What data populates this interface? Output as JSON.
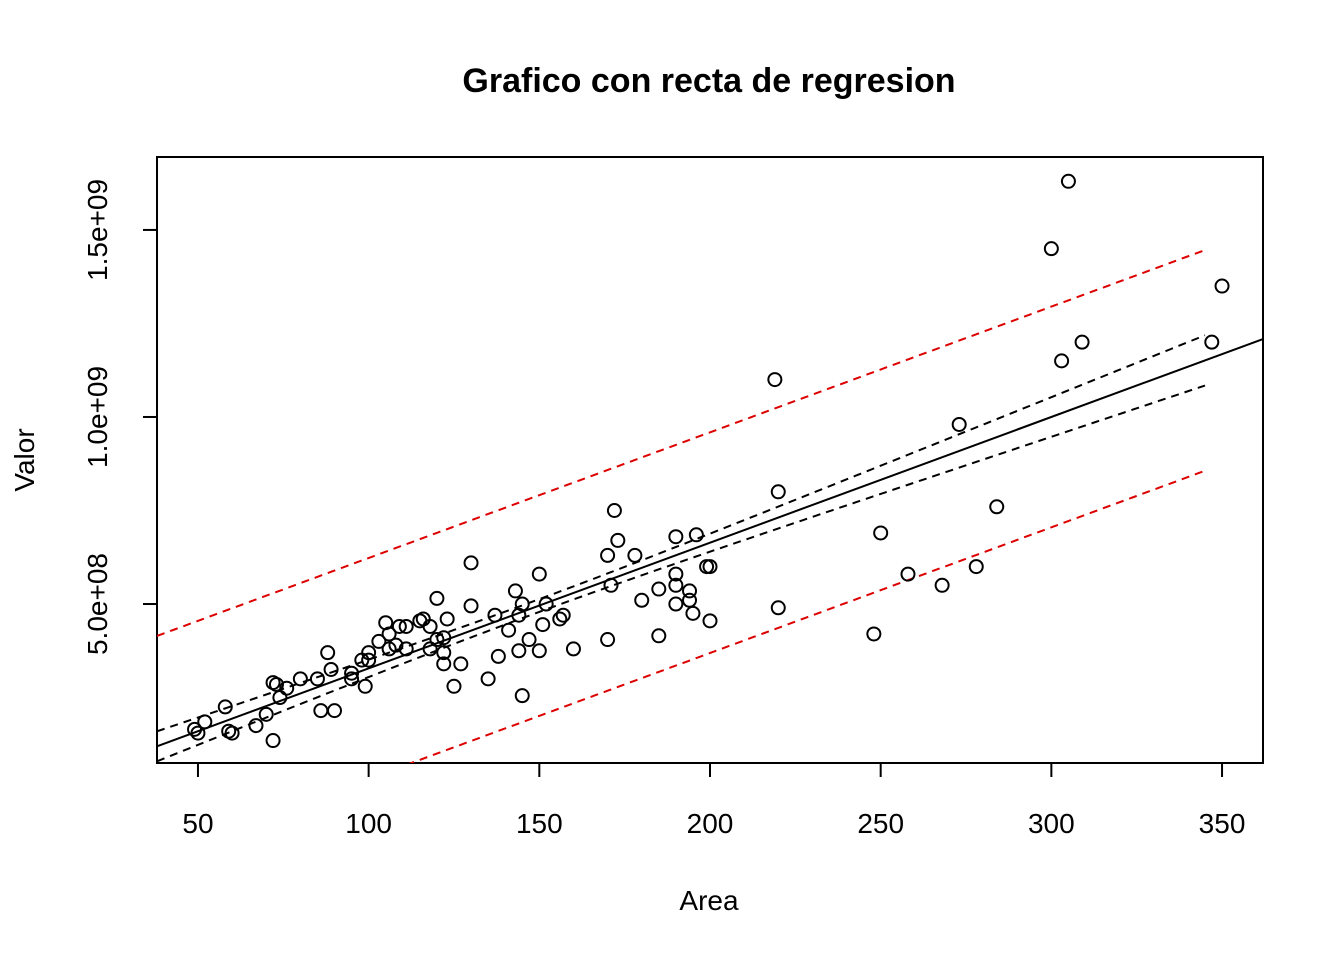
{
  "chart_data": {
    "type": "scatter",
    "title": "Grafico con recta de regresion",
    "xlabel": "Area",
    "ylabel": "Valor",
    "xlim": [
      38,
      362
    ],
    "ylim": [
      75000000,
      1695000000
    ],
    "x_ticks": [
      50,
      100,
      150,
      200,
      250,
      300,
      350
    ],
    "x_tick_labels": [
      "50",
      "100",
      "150",
      "200",
      "250",
      "300",
      "350"
    ],
    "y_ticks": [
      500000000,
      1000000000,
      1500000000
    ],
    "y_tick_labels": [
      "5.0e+08",
      "1.0e+09",
      "1.5e+09"
    ],
    "grid": false,
    "legend": "none",
    "colors": {
      "points": "#000000",
      "regression_line": "#000000",
      "confidence_band": "#000000",
      "prediction_band": "#dd0000"
    },
    "series": [
      {
        "type": "scatter",
        "marker": "open-circle",
        "points": [
          [
            49,
            165000000
          ],
          [
            50,
            155000000
          ],
          [
            52,
            185000000
          ],
          [
            58,
            225000000
          ],
          [
            59,
            160000000
          ],
          [
            60,
            155000000
          ],
          [
            67,
            175000000
          ],
          [
            70,
            205000000
          ],
          [
            72,
            290000000
          ],
          [
            72,
            135000000
          ],
          [
            73,
            285000000
          ],
          [
            74,
            250000000
          ],
          [
            76,
            275000000
          ],
          [
            80,
            300000000
          ],
          [
            85,
            300000000
          ],
          [
            86,
            215000000
          ],
          [
            88,
            370000000
          ],
          [
            89,
            325000000
          ],
          [
            90,
            215000000
          ],
          [
            95,
            315000000
          ],
          [
            95,
            300000000
          ],
          [
            98,
            350000000
          ],
          [
            99,
            280000000
          ],
          [
            100,
            350000000
          ],
          [
            100,
            370000000
          ],
          [
            103,
            400000000
          ],
          [
            105,
            450000000
          ],
          [
            106,
            380000000
          ],
          [
            106,
            420000000
          ],
          [
            108,
            390000000
          ],
          [
            109,
            440000000
          ],
          [
            111,
            380000000
          ],
          [
            111,
            440000000
          ],
          [
            115,
            455000000
          ],
          [
            116,
            460000000
          ],
          [
            118,
            440000000
          ],
          [
            118,
            380000000
          ],
          [
            120,
            515000000
          ],
          [
            120,
            405000000
          ],
          [
            122,
            410000000
          ],
          [
            122,
            370000000
          ],
          [
            122,
            340000000
          ],
          [
            123,
            460000000
          ],
          [
            125,
            280000000
          ],
          [
            127,
            340000000
          ],
          [
            130,
            495000000
          ],
          [
            130,
            610000000
          ],
          [
            135,
            300000000
          ],
          [
            137,
            470000000
          ],
          [
            138,
            360000000
          ],
          [
            141,
            430000000
          ],
          [
            143,
            535000000
          ],
          [
            144,
            470000000
          ],
          [
            144,
            375000000
          ],
          [
            145,
            500000000
          ],
          [
            145,
            255000000
          ],
          [
            147,
            405000000
          ],
          [
            150,
            580000000
          ],
          [
            150,
            375000000
          ],
          [
            151,
            445000000
          ],
          [
            152,
            500000000
          ],
          [
            156,
            460000000
          ],
          [
            157,
            470000000
          ],
          [
            160,
            380000000
          ],
          [
            170,
            630000000
          ],
          [
            170,
            405000000
          ],
          [
            171,
            550000000
          ],
          [
            172,
            750000000
          ],
          [
            173,
            670000000
          ],
          [
            178,
            630000000
          ],
          [
            180,
            510000000
          ],
          [
            185,
            540000000
          ],
          [
            185,
            415000000
          ],
          [
            190,
            680000000
          ],
          [
            190,
            580000000
          ],
          [
            190,
            550000000
          ],
          [
            190,
            500000000
          ],
          [
            194,
            535000000
          ],
          [
            194,
            510000000
          ],
          [
            195,
            475000000
          ],
          [
            196,
            685000000
          ],
          [
            199,
            600000000
          ],
          [
            200,
            600000000
          ],
          [
            200,
            455000000
          ],
          [
            219,
            1100000000
          ],
          [
            220,
            800000000
          ],
          [
            220,
            490000000
          ],
          [
            248,
            420000000
          ],
          [
            250,
            690000000
          ],
          [
            258,
            580000000
          ],
          [
            268,
            550000000
          ],
          [
            273,
            980000000
          ],
          [
            278,
            600000000
          ],
          [
            284,
            760000000
          ],
          [
            300,
            1450000000
          ],
          [
            303,
            1150000000
          ],
          [
            305,
            1630000000
          ],
          [
            309,
            1200000000
          ],
          [
            347,
            1200000000
          ],
          [
            350,
            1350000000
          ]
        ]
      }
    ],
    "regression": {
      "intercept": -8000000,
      "slope": 3360000,
      "x_range": [
        38,
        362
      ]
    },
    "confidence_band": {
      "x_range": [
        38,
        345
      ],
      "center_x": 148,
      "min_halfwidth": 17000000,
      "scale": 3300
    },
    "prediction_band": {
      "x_range": [
        38,
        345
      ],
      "halfwidth": 295000000
    }
  }
}
